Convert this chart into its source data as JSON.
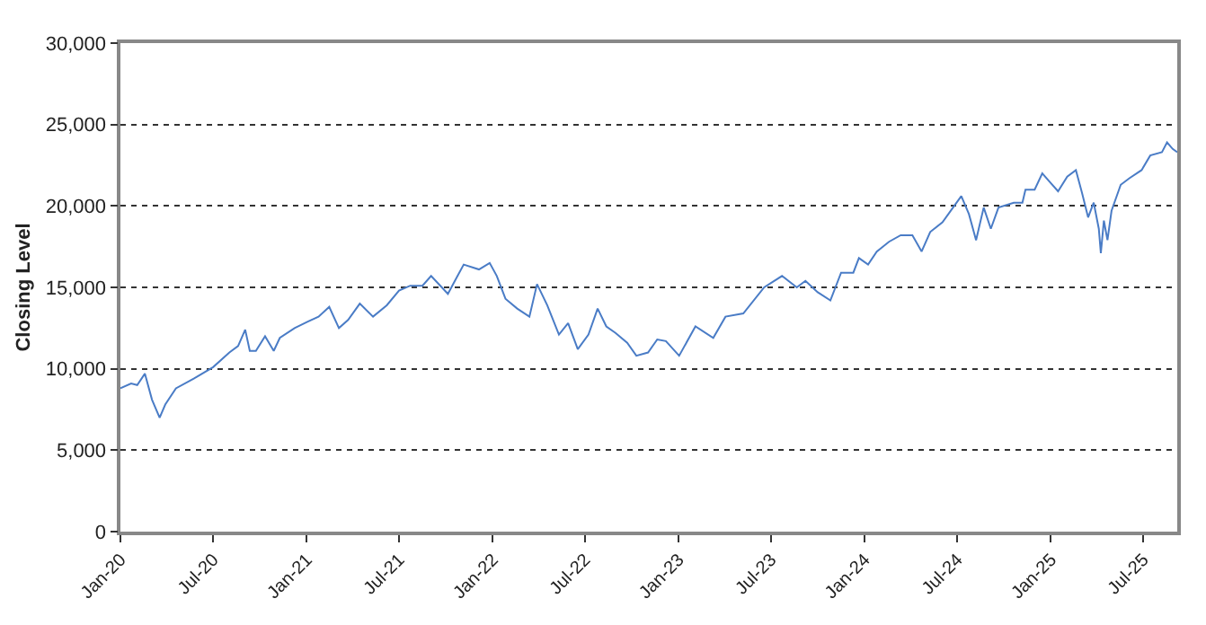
{
  "chart_data": {
    "type": "line",
    "ylabel": "Closing Level",
    "grid": "y",
    "marker": "none",
    "line_style": "solid",
    "xlim": [
      "2020-01-01",
      "2025-09-06"
    ],
    "ylim": [
      0,
      30000
    ],
    "yticks": [
      {
        "value": 0,
        "label": "0"
      },
      {
        "value": 5000,
        "label": "5,000"
      },
      {
        "value": 10000,
        "label": "10,000"
      },
      {
        "value": 15000,
        "label": "15,000"
      },
      {
        "value": 20000,
        "label": "20,000"
      },
      {
        "value": 25000,
        "label": "25,000"
      },
      {
        "value": 30000,
        "label": "30,000"
      }
    ],
    "xticks": [
      {
        "value": "2020-01-01",
        "label": "Jan-20"
      },
      {
        "value": "2020-07-01",
        "label": "Jul-20"
      },
      {
        "value": "2021-01-01",
        "label": "Jan-21"
      },
      {
        "value": "2021-07-01",
        "label": "Jul-21"
      },
      {
        "value": "2022-01-01",
        "label": "Jan-22"
      },
      {
        "value": "2022-07-01",
        "label": "Jul-22"
      },
      {
        "value": "2023-01-01",
        "label": "Jan-23"
      },
      {
        "value": "2023-07-01",
        "label": "Jul-23"
      },
      {
        "value": "2024-01-01",
        "label": "Jan-24"
      },
      {
        "value": "2024-07-01",
        "label": "Jul-24"
      },
      {
        "value": "2025-01-01",
        "label": "Jan-25"
      },
      {
        "value": "2025-07-01",
        "label": "Jul-25"
      }
    ],
    "x": [
      "2020-01-01",
      "2020-01-22",
      "2020-02-03",
      "2020-02-18",
      "2020-03-03",
      "2020-03-18",
      "2020-03-29",
      "2020-04-19",
      "2020-05-24",
      "2020-07-01",
      "2020-08-02",
      "2020-08-19",
      "2020-09-02",
      "2020-09-11",
      "2020-09-23",
      "2020-10-11",
      "2020-10-28",
      "2020-11-09",
      "2020-12-08",
      "2021-01-03",
      "2021-01-24",
      "2021-02-14",
      "2021-03-05",
      "2021-03-23",
      "2021-04-15",
      "2021-05-11",
      "2021-06-07",
      "2021-07-01",
      "2021-07-23",
      "2021-08-16",
      "2021-09-02",
      "2021-10-05",
      "2021-11-05",
      "2021-12-05",
      "2021-12-26",
      "2022-01-09",
      "2022-01-26",
      "2022-02-18",
      "2022-03-14",
      "2022-03-29",
      "2022-04-18",
      "2022-05-11",
      "2022-05-29",
      "2022-06-17",
      "2022-07-08",
      "2022-07-26",
      "2022-08-12",
      "2022-08-30",
      "2022-09-22",
      "2022-10-10",
      "2022-11-02",
      "2022-11-20",
      "2022-12-07",
      "2023-01-02",
      "2023-02-03",
      "2023-03-10",
      "2023-04-03",
      "2023-05-08",
      "2023-06-18",
      "2023-07-23",
      "2023-08-21",
      "2023-09-07",
      "2023-10-01",
      "2023-10-26",
      "2023-11-16",
      "2023-12-10",
      "2023-12-21",
      "2024-01-08",
      "2024-01-25",
      "2024-02-18",
      "2024-03-12",
      "2024-04-04",
      "2024-04-22",
      "2024-05-09",
      "2024-06-02",
      "2024-06-25",
      "2024-07-09",
      "2024-07-24",
      "2024-08-07",
      "2024-08-22",
      "2024-09-05",
      "2024-09-20",
      "2024-10-20",
      "2024-11-06",
      "2024-11-12",
      "2024-11-30",
      "2024-12-15",
      "2024-12-29",
      "2025-01-15",
      "2025-02-02",
      "2025-02-19",
      "2025-03-03",
      "2025-03-15",
      "2025-03-26",
      "2025-04-05",
      "2025-04-09",
      "2025-04-15",
      "2025-04-22",
      "2025-04-30",
      "2025-05-18",
      "2025-06-04",
      "2025-06-28",
      "2025-07-15",
      "2025-08-07",
      "2025-08-17",
      "2025-08-28",
      "2025-09-06"
    ],
    "series": [
      {
        "color": "#4a7cc6",
        "values": [
          8800,
          9100,
          9000,
          9700,
          8100,
          7000,
          7800,
          8800,
          9400,
          10100,
          11000,
          11400,
          12400,
          11100,
          11100,
          12000,
          11100,
          11900,
          12500,
          12900,
          13200,
          13800,
          12500,
          13000,
          14000,
          13200,
          13900,
          14800,
          15100,
          15100,
          15700,
          14600,
          16400,
          16100,
          16500,
          15700,
          14300,
          13700,
          13200,
          15200,
          13900,
          12100,
          12800,
          11200,
          12100,
          13700,
          12600,
          12200,
          11600,
          10800,
          11000,
          11800,
          11700,
          10800,
          12600,
          11900,
          13200,
          13400,
          15000,
          15700,
          15000,
          15400,
          14700,
          14200,
          15900,
          15900,
          16800,
          16400,
          17200,
          17800,
          18200,
          18200,
          17200,
          18400,
          19000,
          20000,
          20600,
          19500,
          17900,
          19900,
          18600,
          19900,
          20200,
          20200,
          21000,
          21000,
          22000,
          21500,
          20900,
          21800,
          22200,
          20800,
          19300,
          20200,
          18600,
          17100,
          19100,
          17900,
          19700,
          21300,
          21700,
          22200,
          23100,
          23300,
          23900,
          23500,
          23300
        ]
      }
    ]
  }
}
